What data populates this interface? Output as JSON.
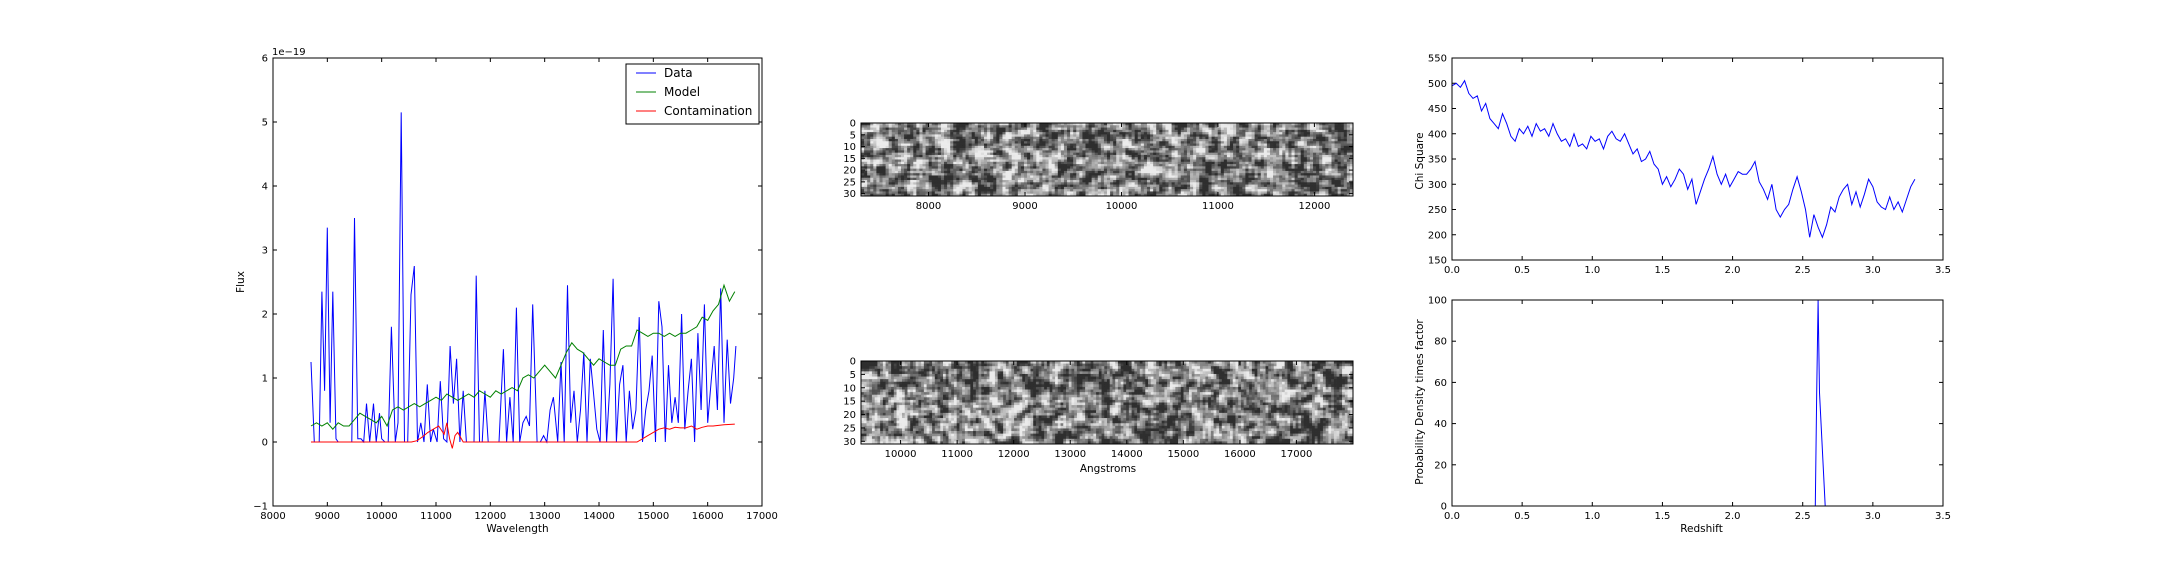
{
  "chart_data": [
    {
      "type": "line",
      "xlabel": "Wavelength",
      "ylabel": "Flux",
      "offset_label": "1e−19",
      "xlim": [
        8000,
        17000
      ],
      "ylim": [
        -1,
        6
      ],
      "xticks": [
        "8000",
        "9000",
        "10000",
        "11000",
        "12000",
        "13000",
        "14000",
        "15000",
        "16000",
        "17000"
      ],
      "yticks": [
        "−1",
        "0",
        "1",
        "2",
        "3",
        "4",
        "5",
        "6"
      ],
      "legend": {
        "position": "upper right",
        "entries": [
          "Data",
          "Model",
          "Contamination"
        ]
      },
      "series": [
        {
          "name": "Data",
          "color": "#0000ff",
          "x": [
            8700,
            8760,
            8850,
            8900,
            8950,
            9000,
            9050,
            9100,
            9160,
            9200,
            9260,
            9300,
            9350,
            9400,
            9450,
            9500,
            9560,
            9620,
            9670,
            9720,
            9780,
            9850,
            9900,
            9960,
            10000,
            10060,
            10120,
            10180,
            10250,
            10300,
            10360,
            10420,
            10480,
            10540,
            10600,
            10660,
            10720,
            10780,
            10840,
            10900,
            10950,
            11020,
            11080,
            11140,
            11200,
            11260,
            11320,
            11380,
            11440,
            11500,
            11560,
            11620,
            11700,
            11740,
            11800,
            11850,
            11900,
            11960,
            12020,
            12100,
            12160,
            12240,
            12300,
            12360,
            12420,
            12480,
            12540,
            12600,
            12660,
            12720,
            12780,
            12860,
            12920,
            12980,
            13040,
            13100,
            13160,
            13240,
            13300,
            13360,
            13420,
            13480,
            13540,
            13600,
            13660,
            13720,
            13780,
            13840,
            13900,
            13960,
            14020,
            14080,
            14140,
            14200,
            14260,
            14320,
            14380,
            14440,
            14500,
            14560,
            14620,
            14680,
            14740,
            14800,
            14860,
            14920,
            14980,
            15040,
            15100,
            15160,
            15220,
            15280,
            15340,
            15400,
            15460,
            15520,
            15580,
            15640,
            15700,
            15760,
            15820,
            15880,
            15940,
            16000,
            16060,
            16120,
            16180,
            16240,
            16300,
            16360,
            16420,
            16480,
            16520
          ],
          "y": [
            1.25,
            0,
            0,
            2.35,
            0.8,
            3.35,
            0.3,
            2.35,
            0.05,
            0,
            0,
            0,
            0,
            0,
            0,
            3.5,
            0.05,
            0.05,
            0,
            0.6,
            0,
            0.6,
            0,
            0.45,
            0.05,
            0,
            0,
            1.8,
            0,
            0.3,
            5.15,
            0,
            0,
            2.3,
            2.75,
            0,
            0.3,
            0,
            0.9,
            0,
            0.2,
            0,
            0.95,
            0.05,
            0,
            1.5,
            0.6,
            1.3,
            0,
            0.8,
            0,
            0,
            0,
            2.6,
            0,
            0,
            0.8,
            0,
            0,
            0,
            0,
            1.45,
            0,
            0.7,
            0,
            2.1,
            0,
            0.3,
            0.4,
            0.25,
            2.15,
            0,
            0,
            0.1,
            0,
            0.5,
            0.7,
            0,
            1.25,
            0,
            2.45,
            0.3,
            0.8,
            0,
            0.5,
            1.4,
            0,
            1.3,
            0.75,
            0.2,
            0,
            1.75,
            0,
            0.9,
            2.55,
            0,
            0.9,
            1.2,
            0,
            0.8,
            0.2,
            0.5,
            1.95,
            0,
            0.5,
            0.8,
            1.35,
            0,
            2.2,
            1.8,
            0,
            1.2,
            0.3,
            0.7,
            0.3,
            2.0,
            0.2,
            0.8,
            1.3,
            0,
            1.7,
            0.5,
            2.15,
            0.3,
            0.9,
            1.5,
            0.5,
            2.4,
            0.3,
            1.6,
            0.6,
            1.0,
            1.5
          ]
        },
        {
          "name": "Model",
          "color": "#008000",
          "x": [
            8700,
            8800,
            8900,
            9000,
            9100,
            9200,
            9300,
            9400,
            9500,
            9600,
            9700,
            9800,
            9900,
            10000,
            10100,
            10200,
            10300,
            10400,
            10500,
            10600,
            10700,
            10800,
            10900,
            11000,
            11100,
            11200,
            11300,
            11400,
            11500,
            11600,
            11700,
            11800,
            11900,
            12000,
            12100,
            12200,
            12300,
            12400,
            12500,
            12600,
            12700,
            12800,
            12900,
            13000,
            13100,
            13200,
            13300,
            13400,
            13500,
            13600,
            13700,
            13800,
            13900,
            14000,
            14100,
            14200,
            14300,
            14400,
            14500,
            14600,
            14700,
            14800,
            14900,
            15000,
            15100,
            15200,
            15300,
            15400,
            15500,
            15600,
            15700,
            15800,
            15900,
            16000,
            16100,
            16200,
            16300,
            16400,
            16500
          ],
          "y": [
            0.25,
            0.3,
            0.25,
            0.3,
            0.2,
            0.3,
            0.25,
            0.25,
            0.35,
            0.45,
            0.4,
            0.35,
            0.3,
            0.4,
            0.25,
            0.5,
            0.55,
            0.5,
            0.55,
            0.6,
            0.55,
            0.6,
            0.65,
            0.7,
            0.65,
            0.75,
            0.7,
            0.65,
            0.7,
            0.75,
            0.7,
            0.8,
            0.75,
            0.7,
            0.8,
            0.75,
            0.8,
            0.85,
            0.8,
            1.0,
            1.05,
            1.0,
            1.1,
            1.2,
            1.1,
            1.0,
            1.2,
            1.4,
            1.55,
            1.45,
            1.4,
            1.3,
            1.2,
            1.3,
            1.25,
            1.2,
            1.2,
            1.45,
            1.5,
            1.5,
            1.75,
            1.7,
            1.65,
            1.7,
            1.7,
            1.65,
            1.7,
            1.65,
            1.7,
            1.7,
            1.75,
            1.8,
            1.95,
            1.9,
            2.05,
            2.15,
            2.45,
            2.2,
            2.35
          ]
        },
        {
          "name": "Contamination",
          "color": "#ff0000",
          "x": [
            8700,
            9000,
            9500,
            10000,
            10200,
            10400,
            10550,
            10650,
            10750,
            10850,
            10950,
            11050,
            11150,
            11200,
            11250,
            11300,
            11350,
            11400,
            11500,
            12000,
            12500,
            13000,
            13500,
            14000,
            14500,
            14700,
            14800,
            14900,
            15000,
            15100,
            15200,
            15300,
            15400,
            15500,
            15600,
            15700,
            15800,
            15900,
            16000,
            16100,
            16200,
            16300,
            16500
          ],
          "y": [
            0,
            0,
            0,
            0,
            0,
            0,
            0,
            0.02,
            0.08,
            0.15,
            0.2,
            0.25,
            0.12,
            0.3,
            0.05,
            -0.1,
            0.1,
            0.15,
            0,
            0,
            0,
            0,
            0,
            0,
            0,
            0,
            0.05,
            0.1,
            0.15,
            0.2,
            0.22,
            0.2,
            0.23,
            0.22,
            0.22,
            0.25,
            0.2,
            0.23,
            0.25,
            0.25,
            0.26,
            0.27,
            0.28
          ]
        }
      ]
    },
    {
      "type": "heatmap",
      "xlim": [
        7300,
        12400
      ],
      "ylim": [
        31,
        0
      ],
      "xticks": [
        "8000",
        "9000",
        "10000",
        "11000",
        "12000"
      ],
      "yticks": [
        "0",
        "5",
        "10",
        "15",
        "20",
        "25",
        "30"
      ],
      "colormap": "gray",
      "rows": 32,
      "cols": 160
    },
    {
      "type": "heatmap",
      "xlabel": "Angstroms",
      "xlim": [
        9300,
        18000
      ],
      "ylim": [
        31,
        0
      ],
      "xticks": [
        "10000",
        "11000",
        "12000",
        "13000",
        "14000",
        "15000",
        "16000",
        "17000"
      ],
      "yticks": [
        "0",
        "5",
        "10",
        "15",
        "20",
        "25",
        "30"
      ],
      "colormap": "gray",
      "rows": 32,
      "cols": 180
    },
    {
      "type": "line",
      "ylabel": "Chi Square",
      "xlim": [
        0,
        3.5
      ],
      "ylim": [
        150,
        550
      ],
      "xticks": [
        "0.0",
        "0.5",
        "1.0",
        "1.5",
        "2.0",
        "2.5",
        "3.0",
        "3.5"
      ],
      "yticks": [
        "150",
        "200",
        "250",
        "300",
        "350",
        "400",
        "450",
        "500",
        "550"
      ],
      "series": [
        {
          "color": "#0000ff",
          "x": [
            0,
            0.03,
            0.06,
            0.09,
            0.12,
            0.15,
            0.18,
            0.21,
            0.24,
            0.27,
            0.3,
            0.33,
            0.36,
            0.39,
            0.42,
            0.45,
            0.48,
            0.51,
            0.54,
            0.57,
            0.6,
            0.63,
            0.66,
            0.69,
            0.72,
            0.75,
            0.78,
            0.81,
            0.84,
            0.87,
            0.9,
            0.93,
            0.96,
            0.99,
            1.02,
            1.05,
            1.08,
            1.11,
            1.14,
            1.17,
            1.2,
            1.23,
            1.26,
            1.29,
            1.32,
            1.35,
            1.38,
            1.41,
            1.44,
            1.47,
            1.5,
            1.53,
            1.56,
            1.59,
            1.62,
            1.65,
            1.68,
            1.71,
            1.74,
            1.77,
            1.8,
            1.83,
            1.86,
            1.89,
            1.92,
            1.95,
            1.98,
            2.01,
            2.04,
            2.07,
            2.1,
            2.13,
            2.16,
            2.19,
            2.22,
            2.25,
            2.28,
            2.31,
            2.34,
            2.37,
            2.4,
            2.43,
            2.46,
            2.49,
            2.52,
            2.55,
            2.58,
            2.61,
            2.64,
            2.67,
            2.7,
            2.73,
            2.76,
            2.79,
            2.82,
            2.85,
            2.88,
            2.91,
            2.94,
            2.97,
            3.0,
            3.03,
            3.06,
            3.09,
            3.12,
            3.15,
            3.18,
            3.21,
            3.24,
            3.27,
            3.3
          ],
          "y": [
            495,
            500,
            492,
            505,
            480,
            470,
            475,
            445,
            460,
            430,
            420,
            410,
            440,
            420,
            395,
            385,
            410,
            400,
            415,
            395,
            420,
            405,
            410,
            395,
            420,
            400,
            385,
            390,
            375,
            400,
            375,
            380,
            370,
            395,
            385,
            390,
            370,
            395,
            405,
            390,
            385,
            400,
            380,
            360,
            370,
            345,
            350,
            365,
            340,
            330,
            300,
            315,
            295,
            310,
            330,
            320,
            290,
            310,
            260,
            285,
            310,
            330,
            355,
            320,
            300,
            320,
            295,
            310,
            325,
            320,
            320,
            330,
            345,
            305,
            290,
            270,
            300,
            250,
            235,
            250,
            260,
            290,
            315,
            285,
            250,
            195,
            240,
            215,
            195,
            220,
            255,
            245,
            275,
            290,
            300,
            260,
            285,
            255,
            280,
            310,
            295,
            265,
            255,
            250,
            275,
            250,
            265,
            245,
            270,
            295,
            310
          ]
        }
      ]
    },
    {
      "type": "line",
      "xlabel": "Redshift",
      "ylabel": "Probability Density times factor",
      "xlim": [
        0,
        3.5
      ],
      "ylim": [
        0,
        100
      ],
      "xticks": [
        "0.0",
        "0.5",
        "1.0",
        "1.5",
        "2.0",
        "2.5",
        "3.0",
        "3.5"
      ],
      "yticks": [
        "0",
        "20",
        "40",
        "60",
        "80",
        "100"
      ],
      "series": [
        {
          "color": "#0000ff",
          "x": [
            0,
            2.55,
            2.59,
            2.6,
            2.61,
            2.62,
            2.66,
            3.3
          ],
          "y": [
            0,
            0,
            0,
            55,
            100,
            55,
            0,
            0
          ]
        }
      ]
    }
  ]
}
